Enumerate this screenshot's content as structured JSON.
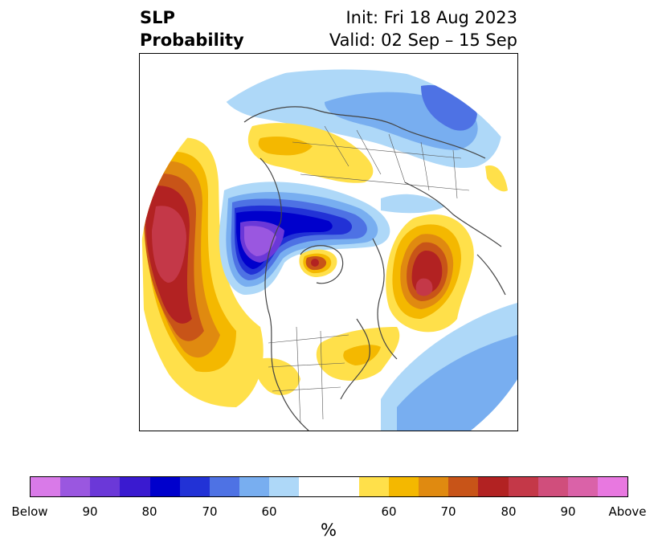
{
  "title": {
    "left_line1": "SLP",
    "left_line2": "Probability",
    "right_line1": "Init: Fri 18 Aug 2023",
    "right_line2": "Valid: 02 Sep – 15 Sep"
  },
  "colorbar": {
    "colors": [
      "#d97ae8",
      "#9a57e0",
      "#6b38d8",
      "#3a1ad0",
      "#0000cc",
      "#2232d6",
      "#4e72e4",
      "#78aef0",
      "#aed8f8",
      "#ffffff",
      "#ffffff",
      "#ffe04a",
      "#f4b800",
      "#e08a10",
      "#c85418",
      "#b22222",
      "#c43848",
      "#d04e7c",
      "#da62a8",
      "#e878e0"
    ],
    "tick_labels": [
      "Below",
      "90",
      "80",
      "70",
      "60",
      "60",
      "70",
      "80",
      "90",
      "Above"
    ],
    "unit": "%"
  }
}
